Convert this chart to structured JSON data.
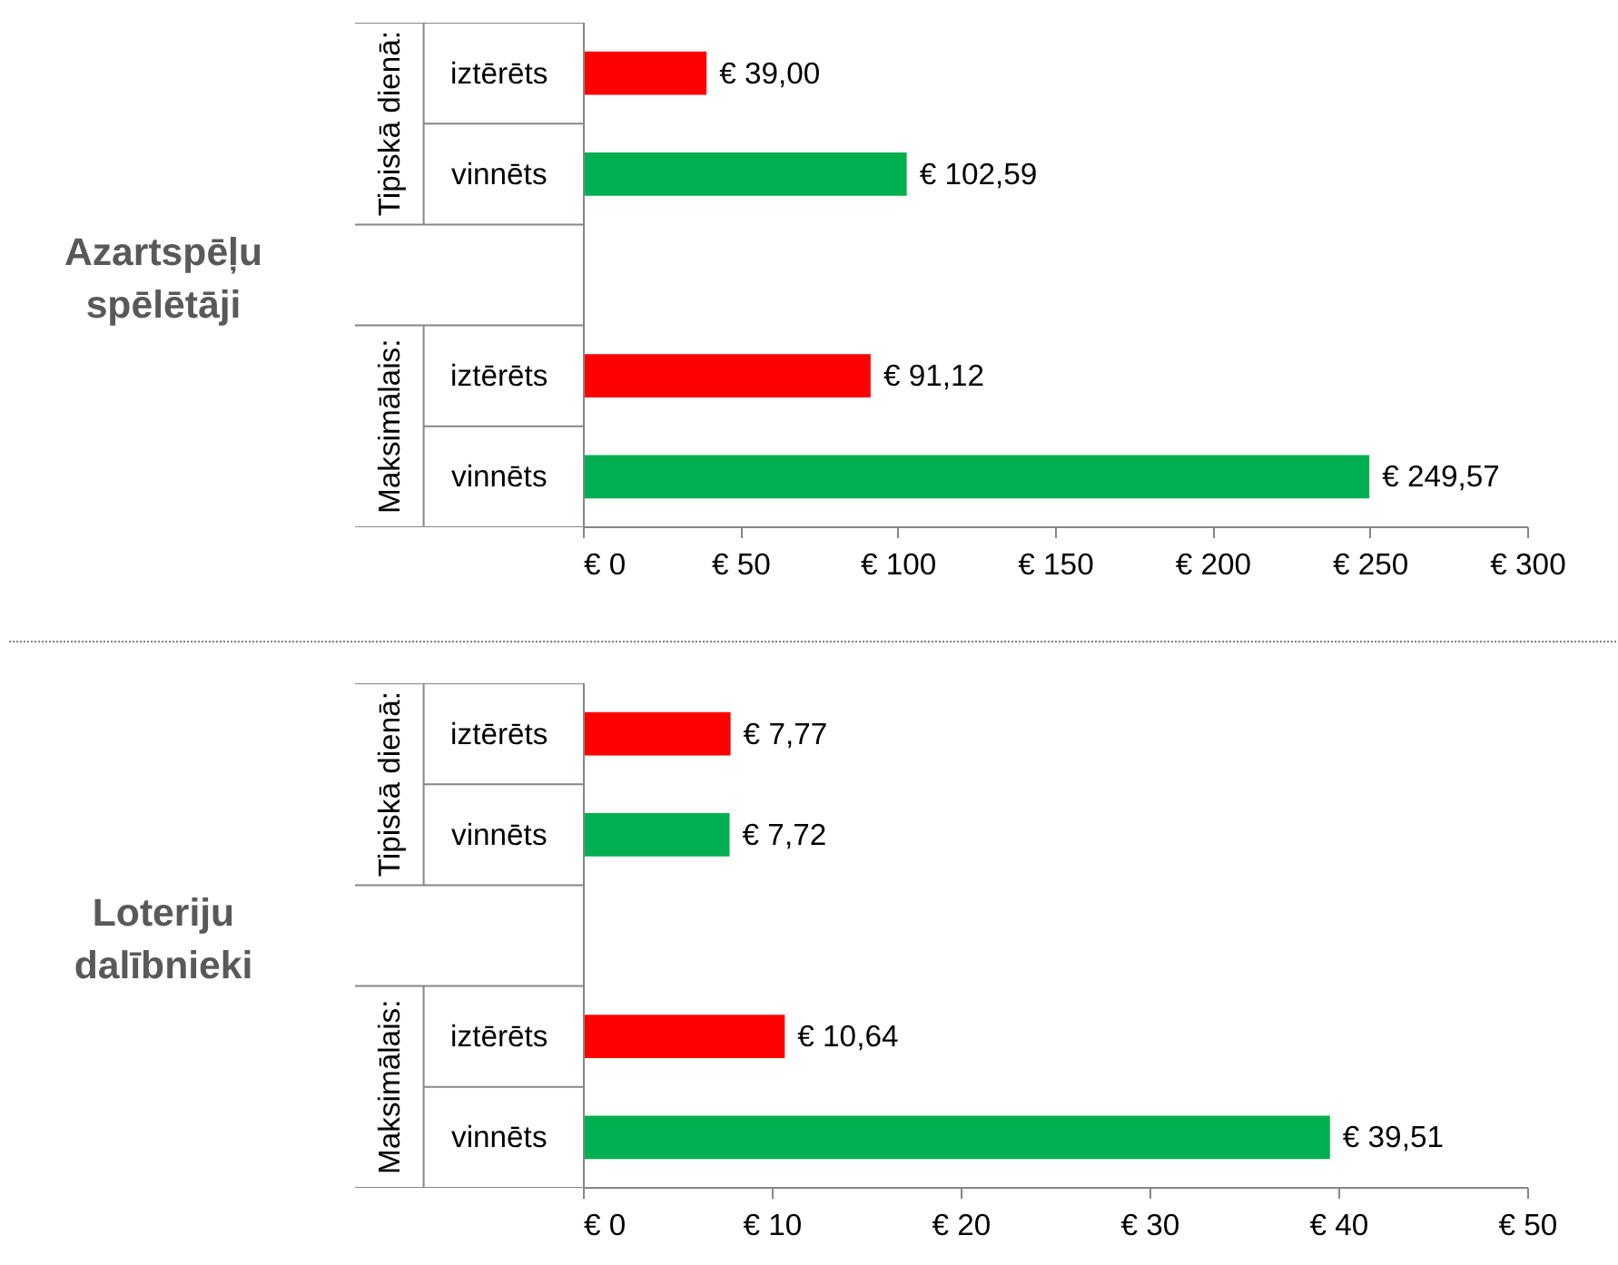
{
  "chart_data": [
    {
      "type": "bar",
      "orientation": "horizontal",
      "title": "Azartspēļu spēlētāji",
      "categories": [
        "iztērēts",
        "vinnēts",
        null,
        "iztērēts",
        "vinnēts"
      ],
      "values": [
        39.0,
        102.59,
        null,
        91.12,
        249.57
      ],
      "colors": [
        "#ff0000",
        "#00b050",
        null,
        "#ff0000",
        "#00b050"
      ],
      "value_labels": [
        "€ 39,00",
        "€ 102,59",
        null,
        "€ 91,12",
        "€ 249,57"
      ],
      "annotations": [
        "Tipiskā dienā:",
        "Maksimālais:"
      ],
      "xlim": [
        0,
        300
      ],
      "xticks": [
        {
          "value": 0,
          "label": "€ 0"
        },
        {
          "value": 50,
          "label": "€ 50"
        },
        {
          "value": 100,
          "label": "€ 100"
        },
        {
          "value": 150,
          "label": "€ 150"
        },
        {
          "value": 200,
          "label": "€ 200"
        },
        {
          "value": 250,
          "label": "€ 250"
        },
        {
          "value": 300,
          "label": "€ 300"
        }
      ],
      "grid": false
    },
    {
      "type": "bar",
      "orientation": "horizontal",
      "title": "Loteriju dalībnieki",
      "categories": [
        "iztērēts",
        "vinnēts",
        null,
        "iztērēts",
        "vinnēts"
      ],
      "values": [
        7.77,
        7.72,
        null,
        10.64,
        39.51
      ],
      "colors": [
        "#ff0000",
        "#00b050",
        null,
        "#ff0000",
        "#00b050"
      ],
      "value_labels": [
        "€ 7,77",
        "€ 7,72",
        null,
        "€ 10,64",
        "€ 39,51"
      ],
      "annotations": [
        "Tipiskā dienā:",
        "Maksimālais:"
      ],
      "xlim": [
        0,
        50
      ],
      "xticks": [
        {
          "value": 0,
          "label": "€ 0"
        },
        {
          "value": 10,
          "label": "€ 10"
        },
        {
          "value": 20,
          "label": "€ 20"
        },
        {
          "value": 30,
          "label": "€ 30"
        },
        {
          "value": 40,
          "label": "€ 40"
        },
        {
          "value": 50,
          "label": "€ 50"
        }
      ],
      "grid": false
    }
  ]
}
